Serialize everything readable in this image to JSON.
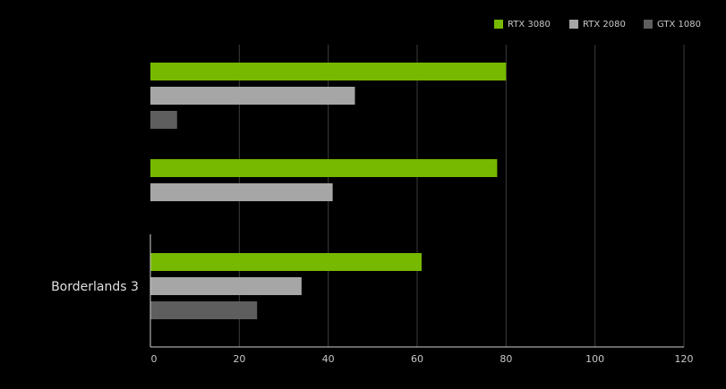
{
  "chart_data": {
    "type": "bar",
    "orientation": "horizontal",
    "title": "",
    "xlabel": "",
    "ylabel": "",
    "categories": [
      "",
      "",
      "Borderlands 3"
    ],
    "series": [
      {
        "name": "RTX 3080",
        "color": "#76b900",
        "values": [
          80,
          78,
          61
        ]
      },
      {
        "name": "RTX 2080",
        "color": "#a6a6a6",
        "values": [
          46,
          41,
          34
        ]
      },
      {
        "name": "GTX 1080",
        "color": "#5e5e5e",
        "values": [
          6,
          0,
          24
        ]
      }
    ],
    "xlim": [
      0,
      120
    ],
    "xticks": [
      0,
      20,
      40,
      60,
      80,
      100,
      120
    ],
    "grid": true,
    "legend_position": "top-right",
    "background_color": "#000000",
    "notes": []
  }
}
